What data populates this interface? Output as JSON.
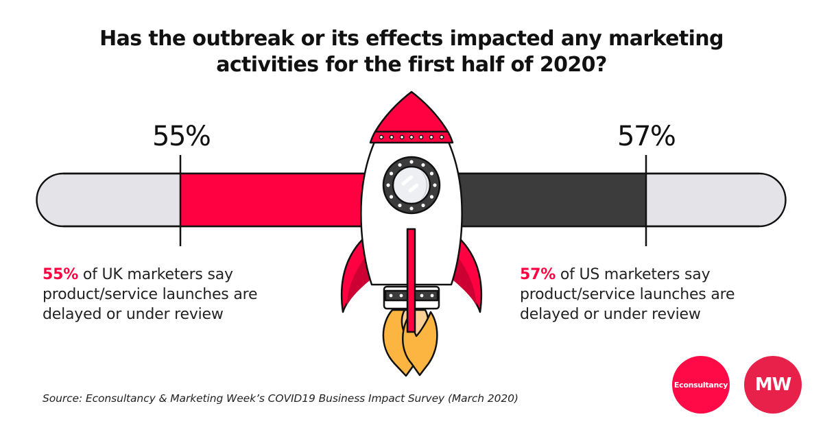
{
  "title": {
    "line1": "Has the outbreak or its effects impacted any marketing",
    "line2": "activities for the first half of 2020?"
  },
  "chart_data": {
    "type": "bar",
    "title": "Has the outbreak or its effects impacted any marketing activities for the first half of 2020?",
    "orientation": "horizontal",
    "categories": [
      "UK",
      "US"
    ],
    "values": [
      55,
      57
    ],
    "unit": "%",
    "ylim": [
      0,
      100
    ],
    "series": [
      {
        "name": "UK marketers",
        "value": 55,
        "color": "#ff0040",
        "direction": "from-center-leftward"
      },
      {
        "name": "US marketers",
        "value": 57,
        "color": "#3c3c3c",
        "direction": "from-center-rightward"
      }
    ],
    "track_color": "#e3e3e8",
    "data_labels": [
      "55%",
      "57%"
    ]
  },
  "labels": {
    "uk_pct": "55%",
    "us_pct": "57%"
  },
  "captions": {
    "uk": {
      "highlight": "55%",
      "line1_rest": " of UK marketers say",
      "line2": "product/service launches are",
      "line3": "delayed or under review"
    },
    "us": {
      "highlight": "57%",
      "line1_rest": " of US marketers say",
      "line2": "product/service launches are",
      "line3": "delayed or under review"
    }
  },
  "illustration": {
    "icon": "rocket-icon",
    "colors": {
      "red": "#ff0040",
      "dark_red": "#cc0033",
      "dark": "#3c3c3c",
      "flame": "#fdb541",
      "flame_light": "#fccf94"
    }
  },
  "source": "Source: Econsultancy & Marketing Week’s COVID19 Business Impact Survey (March 2020)",
  "logos": {
    "econsultancy": "Econsultancy",
    "mw": "MW"
  }
}
